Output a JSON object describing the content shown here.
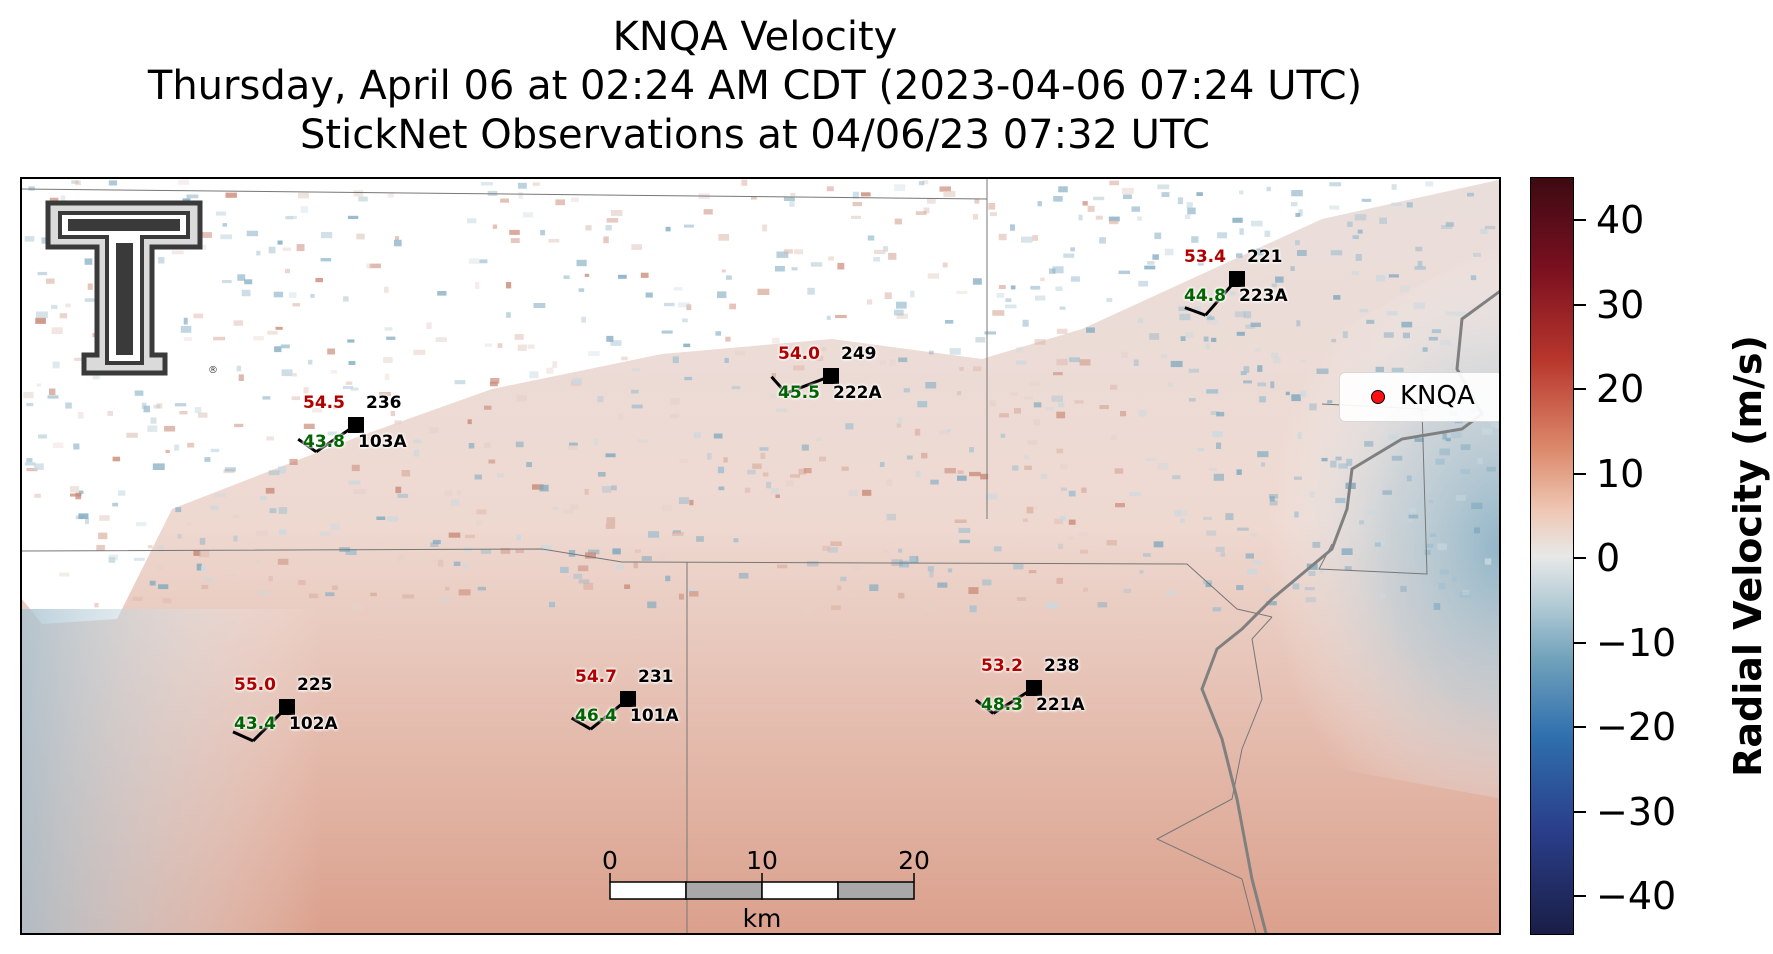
{
  "title": {
    "line1": "KNQA Velocity",
    "line2": "Thursday, April 06 at 02:24 AM CDT (2023-04-06 07:24 UTC)",
    "line3": "StickNet Observations at 04/06/23 07:32 UTC"
  },
  "legend": {
    "label": "KNQA",
    "marker_color": "#ff1010"
  },
  "colorbar": {
    "label": "Radial Velocity (m/s)",
    "range": [
      -45,
      45
    ],
    "ticks": [
      "40",
      "30",
      "20",
      "10",
      "0",
      "−10",
      "−20",
      "−30",
      "−40"
    ],
    "colors": {
      "max": "#3d0a12",
      "zero": "#e8e8e8",
      "min": "#1a1e46"
    }
  },
  "scale_bar": {
    "ticks": [
      "0",
      "10",
      "20"
    ],
    "unit": "km"
  },
  "logo": {
    "name": "Texas Tech Double T"
  },
  "stations": [
    {
      "id": "103A",
      "temp": "54.5",
      "dew": "43.8",
      "dir": "236"
    },
    {
      "id": "222A",
      "temp": "54.0",
      "dew": "45.5",
      "dir": "249"
    },
    {
      "id": "223A",
      "temp": "53.4",
      "dew": "44.8",
      "dir": "221"
    },
    {
      "id": "102A",
      "temp": "55.0",
      "dew": "43.4",
      "dir": "225"
    },
    {
      "id": "101A",
      "temp": "54.7",
      "dew": "46.4",
      "dir": "231"
    },
    {
      "id": "221A",
      "temp": "53.2",
      "dew": "48.3",
      "dir": "238"
    }
  ]
}
